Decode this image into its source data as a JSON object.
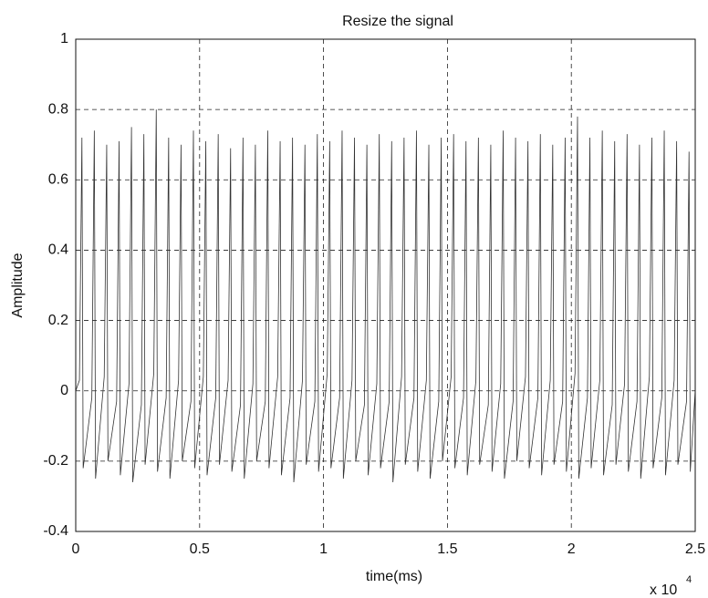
{
  "chart_data": {
    "type": "line",
    "title": "Resize the signal",
    "x_label": "time(ms)",
    "y_label": "Amplitude",
    "x_scale_base": "x 10",
    "x_scale_exponent": "4",
    "color": "#333333",
    "grid": true,
    "xlim": [
      0,
      25000
    ],
    "ylim": [
      -0.4,
      1
    ],
    "xticks": [
      0,
      {
        "value": 5000,
        "label": "0.5"
      },
      {
        "value": 10000,
        "label": "1"
      },
      {
        "value": 15000,
        "label": "1.5"
      },
      {
        "value": 20000,
        "label": "2"
      },
      {
        "value": 25000,
        "label": "2.5"
      }
    ],
    "yticks": [
      -0.4,
      -0.2,
      0,
      0.2,
      0.4,
      0.6,
      0.8,
      1
    ],
    "x": [
      0,
      150,
      250,
      300,
      650,
      750,
      800,
      1150,
      1250,
      1300,
      1650,
      1750,
      1800,
      2150,
      2250,
      2300,
      2650,
      2750,
      2800,
      3150,
      3250,
      3300,
      3650,
      3750,
      3800,
      4150,
      4250,
      4300,
      4650,
      4750,
      4800,
      5150,
      5250,
      5300,
      5650,
      5750,
      5800,
      6150,
      6250,
      6300,
      6650,
      6750,
      6800,
      7150,
      7250,
      7300,
      7650,
      7750,
      7800,
      8150,
      8250,
      8300,
      8650,
      8750,
      8800,
      9150,
      9250,
      9300,
      9650,
      9750,
      9800,
      10150,
      10250,
      10300,
      10650,
      10750,
      10800,
      11150,
      11250,
      11300,
      11650,
      11750,
      11800,
      12150,
      12250,
      12300,
      12650,
      12750,
      12800,
      13150,
      13250,
      13300,
      13650,
      13750,
      13800,
      14150,
      14250,
      14300,
      14650,
      14750,
      14800,
      15150,
      15250,
      15300,
      15650,
      15750,
      15800,
      16150,
      16250,
      16300,
      16650,
      16750,
      16800,
      17150,
      17250,
      17300,
      17650,
      17750,
      17800,
      18150,
      18250,
      18300,
      18650,
      18750,
      18800,
      19150,
      19250,
      19300,
      19650,
      19750,
      19800,
      20150,
      20250,
      20300,
      20650,
      20750,
      20800,
      21150,
      21250,
      21300,
      21650,
      21750,
      21800,
      22150,
      22250,
      22300,
      22650,
      22750,
      22800,
      23150,
      23250,
      23300,
      23650,
      23750,
      23800,
      24150,
      24250,
      24300,
      24650,
      24750,
      24800,
      25000
    ],
    "values": [
      0,
      0.03,
      0.72,
      -0.22,
      -0.02,
      0.74,
      -0.25,
      0.04,
      0.7,
      -0.2,
      -0.03,
      0.71,
      -0.24,
      0.02,
      0.75,
      -0.26,
      -0.04,
      0.73,
      -0.21,
      0.05,
      0.8,
      -0.23,
      -0.02,
      0.72,
      -0.25,
      0.03,
      0.7,
      -0.2,
      -0.03,
      0.74,
      -0.22,
      0.04,
      0.71,
      -0.24,
      -0.02,
      0.73,
      -0.21,
      0.03,
      0.69,
      -0.23,
      -0.04,
      0.72,
      -0.25,
      0.02,
      0.7,
      -0.2,
      -0.03,
      0.74,
      -0.22,
      0.04,
      0.71,
      -0.24,
      -0.02,
      0.72,
      -0.26,
      0.03,
      0.7,
      -0.21,
      -0.03,
      0.73,
      -0.23,
      0.05,
      0.71,
      -0.22,
      -0.02,
      0.74,
      -0.25,
      0.03,
      0.72,
      -0.2,
      -0.04,
      0.7,
      -0.24,
      0.02,
      0.73,
      -0.22,
      -0.03,
      0.71,
      -0.26,
      0.04,
      0.72,
      -0.21,
      -0.02,
      0.74,
      -0.23,
      0.03,
      0.7,
      -0.25,
      -0.03,
      0.72,
      -0.2,
      0.04,
      0.73,
      -0.22,
      -0.02,
      0.71,
      -0.24,
      0.03,
      0.72,
      -0.21,
      -0.04,
      0.7,
      -0.23,
      0.02,
      0.74,
      -0.25,
      -0.03,
      0.72,
      -0.2,
      0.04,
      0.71,
      -0.22,
      -0.02,
      0.73,
      -0.24,
      0.03,
      0.7,
      -0.21,
      -0.03,
      0.72,
      -0.23,
      0.05,
      0.78,
      -0.25,
      -0.02,
      0.72,
      -0.22,
      0.03,
      0.74,
      -0.24,
      -0.04,
      0.71,
      -0.21,
      0.02,
      0.73,
      -0.23,
      -0.03,
      0.7,
      -0.25,
      0.04,
      0.72,
      -0.22,
      -0.02,
      0.74,
      -0.24,
      0.03,
      0.71,
      -0.21,
      -0.03,
      0.68,
      -0.23,
      0
    ]
  }
}
